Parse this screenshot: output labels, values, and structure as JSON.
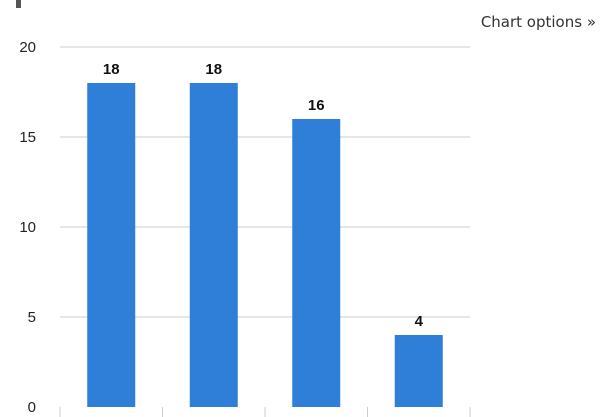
{
  "header": {
    "chart_options_label": "Chart options »"
  },
  "chart_data": {
    "type": "bar",
    "categories": [
      "",
      "",
      "",
      ""
    ],
    "values": [
      18,
      18,
      16,
      4
    ],
    "data_labels": [
      "18",
      "18",
      "16",
      "4"
    ],
    "ylim": [
      0,
      20
    ],
    "yticks": [
      0,
      5,
      10,
      15,
      20
    ],
    "ytick_labels": [
      "0",
      "5",
      "10",
      "15",
      "20"
    ],
    "grid": true,
    "legend": "none",
    "bar_color": "#2f7ed8",
    "grid_color": "#cccccc"
  }
}
